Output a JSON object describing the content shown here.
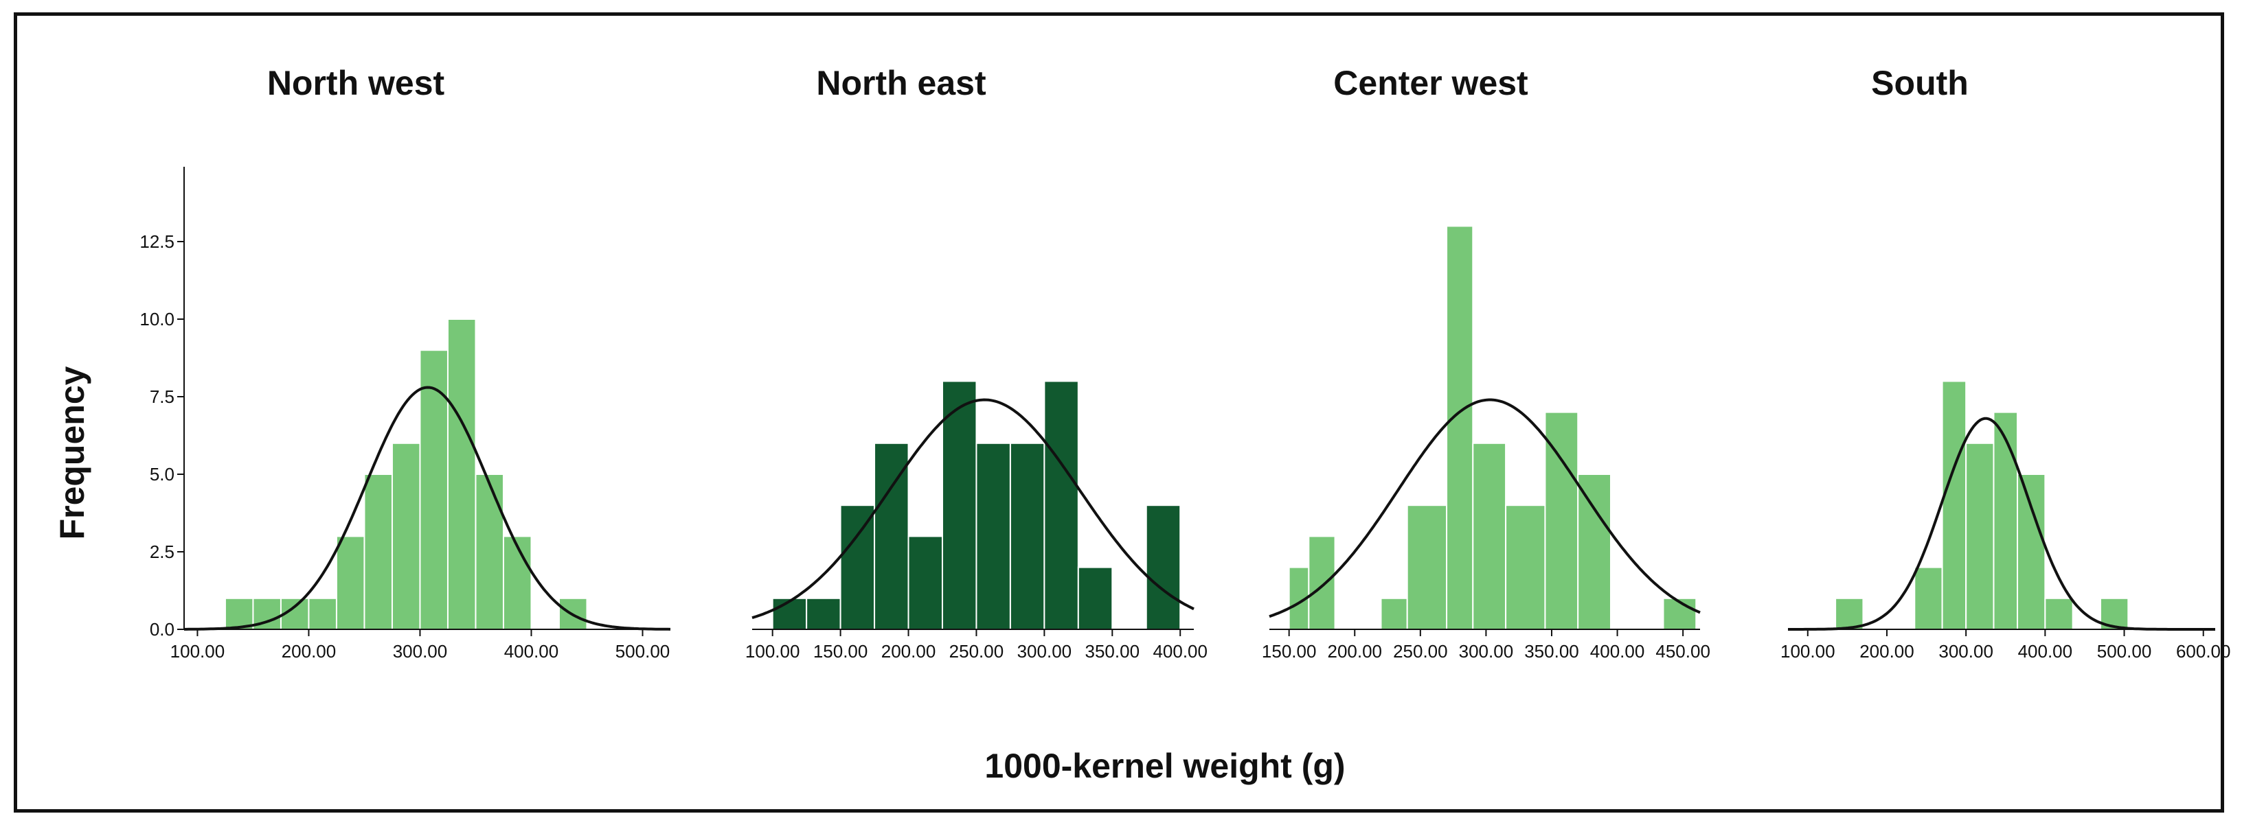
{
  "figure": {
    "ylabel": "Frequency",
    "xlabel": "1000-kernel weight (g)"
  },
  "colors": {
    "light_green": "#77c777",
    "dark_green": "#11592f",
    "bar_edge": "#ffffff",
    "curve": "#111111"
  },
  "chart_data": [
    {
      "type": "bar",
      "title": "North west",
      "color": "#77c777",
      "bins_start": [
        125,
        162.5,
        200,
        237.5,
        275,
        312.5,
        350,
        387.5,
        425
      ],
      "bins": [
        {
          "x0": 125,
          "x1": 150,
          "count": 1
        },
        {
          "x0": 150,
          "x1": 175,
          "count": 1
        },
        {
          "x0": 175,
          "x1": 200,
          "count": 1
        },
        {
          "x0": 200,
          "x1": 225,
          "count": 1
        },
        {
          "x0": 225,
          "x1": 250,
          "count": 3
        },
        {
          "x0": 250,
          "x1": 275,
          "count": 5
        },
        {
          "x0": 275,
          "x1": 300,
          "count": 6
        },
        {
          "x0": 300,
          "x1": 325,
          "count": 9
        },
        {
          "x0": 325,
          "x1": 350,
          "count": 10
        },
        {
          "x0": 350,
          "x1": 375,
          "count": 5
        },
        {
          "x0": 375,
          "x1": 400,
          "count": 3
        },
        {
          "x0": 425,
          "x1": 450,
          "count": 1
        }
      ],
      "normal_curve": {
        "mean": 307,
        "peak": 7.8,
        "sd": 55
      },
      "xlim": [
        88,
        525
      ],
      "xticks": [
        100,
        200,
        300,
        400,
        500
      ],
      "xtick_labels": [
        "100.00",
        "200.00",
        "300.00",
        "400.00",
        "500.00"
      ],
      "ylim": [
        0,
        15
      ],
      "yticks": [
        0,
        2.5,
        5,
        7.5,
        10,
        12.5
      ],
      "ytick_labels": [
        "0.0",
        "2.5",
        "5.0",
        "7.5",
        "10.0",
        "12.5"
      ]
    },
    {
      "type": "bar",
      "title": "North east",
      "color": "#11592f",
      "bins": [
        {
          "x0": 100,
          "x1": 125,
          "count": 1
        },
        {
          "x0": 125,
          "x1": 150,
          "count": 1
        },
        {
          "x0": 150,
          "x1": 175,
          "count": 4
        },
        {
          "x0": 175,
          "x1": 200,
          "count": 6
        },
        {
          "x0": 200,
          "x1": 225,
          "count": 3
        },
        {
          "x0": 225,
          "x1": 250,
          "count": 8
        },
        {
          "x0": 250,
          "x1": 275,
          "count": 6
        },
        {
          "x0": 275,
          "x1": 300,
          "count": 6
        },
        {
          "x0": 300,
          "x1": 325,
          "count": 8
        },
        {
          "x0": 325,
          "x1": 350,
          "count": 2
        },
        {
          "x0": 375,
          "x1": 400,
          "count": 4
        }
      ],
      "normal_curve": {
        "mean": 256,
        "peak": 7.4,
        "sd": 70
      },
      "xlim": [
        85,
        410
      ],
      "xticks": [
        100,
        150,
        200,
        250,
        300,
        350,
        400
      ],
      "xtick_labels": [
        "100.00",
        "150.00",
        "200.00",
        "250.00",
        "300.00",
        "350.00",
        "400.00"
      ],
      "ylim": [
        0,
        15
      ]
    },
    {
      "type": "bar",
      "title": "Center west",
      "color": "#77c777",
      "bins": [
        {
          "x0": 150,
          "x1": 165,
          "count": 2
        },
        {
          "x0": 165,
          "x1": 185,
          "count": 3
        },
        {
          "x0": 220,
          "x1": 240,
          "count": 1
        },
        {
          "x0": 240,
          "x1": 270,
          "count": 4
        },
        {
          "x0": 270,
          "x1": 290,
          "count": 13
        },
        {
          "x0": 290,
          "x1": 315,
          "count": 6
        },
        {
          "x0": 315,
          "x1": 345,
          "count": 4
        },
        {
          "x0": 345,
          "x1": 370,
          "count": 7
        },
        {
          "x0": 370,
          "x1": 395,
          "count": 5
        },
        {
          "x0": 435,
          "x1": 460,
          "count": 1
        }
      ],
      "normal_curve": {
        "mean": 303,
        "peak": 7.4,
        "sd": 70
      },
      "xlim": [
        135,
        463
      ],
      "xticks": [
        150,
        200,
        250,
        300,
        350,
        400,
        450
      ],
      "xtick_labels": [
        "150.00",
        "200.00",
        "250.00",
        "300.00",
        "350.00",
        "400.00",
        "450.00"
      ],
      "ylim": [
        0,
        15
      ]
    },
    {
      "type": "bar",
      "title": "South",
      "color": "#77c777",
      "bins": [
        {
          "x0": 135,
          "x1": 170,
          "count": 1
        },
        {
          "x0": 235,
          "x1": 270,
          "count": 2
        },
        {
          "x0": 270,
          "x1": 300,
          "count": 8
        },
        {
          "x0": 300,
          "x1": 335,
          "count": 6
        },
        {
          "x0": 335,
          "x1": 365,
          "count": 7
        },
        {
          "x0": 365,
          "x1": 400,
          "count": 5
        },
        {
          "x0": 400,
          "x1": 435,
          "count": 1
        },
        {
          "x0": 470,
          "x1": 505,
          "count": 1
        }
      ],
      "normal_curve": {
        "mean": 325,
        "peak": 6.8,
        "sd": 55
      },
      "xlim": [
        75,
        615
      ],
      "xticks": [
        100,
        200,
        300,
        400,
        500,
        600
      ],
      "xtick_labels": [
        "100.00",
        "200.00",
        "300.00",
        "400.00",
        "500.00",
        "600.00"
      ],
      "ylim": [
        0,
        15
      ]
    }
  ]
}
